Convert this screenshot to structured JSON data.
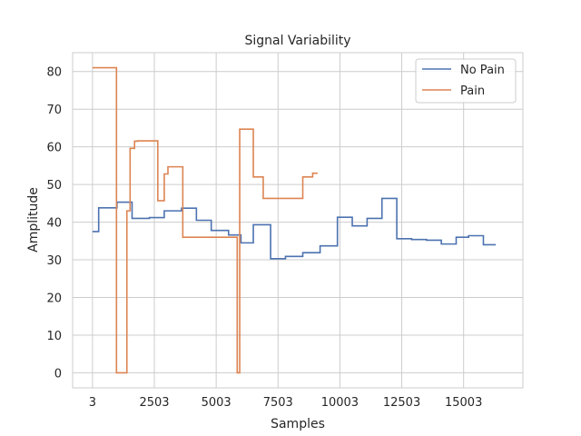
{
  "chart_data": {
    "type": "line",
    "title": "Signal Variability",
    "xlabel": "Samples",
    "ylabel": "Amplitude",
    "xlim": [
      -800,
      17400
    ],
    "ylim": [
      -4,
      85
    ],
    "x_ticks": [
      3,
      2503,
      5003,
      7503,
      10003,
      12503,
      15003
    ],
    "y_ticks": [
      0,
      10,
      20,
      30,
      40,
      50,
      60,
      70,
      80
    ],
    "grid": true,
    "legend_position": "top-right",
    "step": "post",
    "series": [
      {
        "name": "No Pain",
        "color": "#4c72b0",
        "x": [
          3,
          253,
          993,
          1603,
          2303,
          2903,
          3603,
          4203,
          4803,
          5503,
          6003,
          6503,
          7203,
          7803,
          8503,
          9203,
          9903,
          10503,
          11103,
          11703,
          12303,
          12903,
          13503,
          14103,
          14703,
          15203,
          15803,
          16303
        ],
        "y": [
          37.5,
          43.8,
          45.3,
          41.0,
          41.2,
          43.0,
          43.7,
          40.5,
          37.8,
          36.6,
          34.5,
          39.3,
          30.3,
          30.9,
          31.9,
          33.7,
          41.3,
          39.0,
          41.0,
          46.3,
          35.6,
          35.4,
          35.2,
          34.2,
          36.0,
          36.4,
          34.0,
          34.0
        ]
      },
      {
        "name": "Pain",
        "color": "#dd8452",
        "x": [
          3,
          973,
          1393,
          1523,
          1703,
          1823,
          2643,
          2903,
          3053,
          3203,
          3653,
          5853,
          5953,
          6503,
          6903,
          8503,
          8903,
          9103
        ],
        "y": [
          81.0,
          0.0,
          43.0,
          59.6,
          61.5,
          61.6,
          45.7,
          52.8,
          54.7,
          54.7,
          36.0,
          0.0,
          64.7,
          52.0,
          46.3,
          52.0,
          53.0,
          53.0
        ]
      }
    ]
  }
}
